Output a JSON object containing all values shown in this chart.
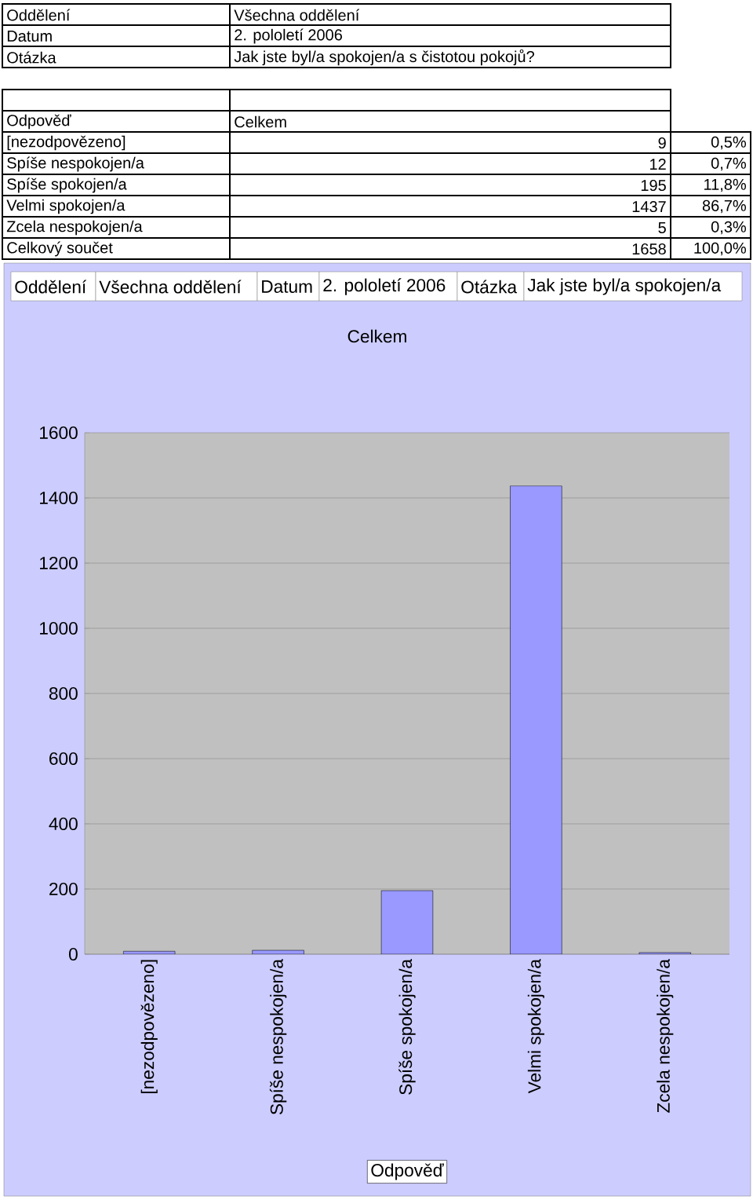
{
  "chart_data": {
    "type": "bar",
    "title": "Celkem",
    "xlabel": "Odpověď",
    "categories": [
      "[nezodpovězeno]",
      "Spíše nespokojen/a",
      "Spíše spokojen/a",
      "Velmi spokojen/a",
      "Zcela nespokojen/a"
    ],
    "values": [
      9,
      12,
      195,
      1437,
      5
    ],
    "color": "#9999ff",
    "ylim": [
      0,
      1600
    ],
    "yticks": [
      0,
      200,
      400,
      600,
      800,
      1000,
      1200,
      1400,
      1600
    ],
    "grid": "y",
    "annotations": [
      "Oddělení",
      "Všechna oddělení",
      "Datum",
      "2. pololetí 2006",
      "Otázka",
      "Jak jste byl/a spokojen/a s čistotou pokojů?",
      "0,5%",
      "0,7%",
      "11,8%",
      "86,7%",
      "0,3%",
      "Celkový součet",
      "1658",
      "100,0%",
      "Jak jste byl/a spokojen/a",
      "9",
      "12",
      "195",
      "1437",
      "5"
    ]
  }
}
